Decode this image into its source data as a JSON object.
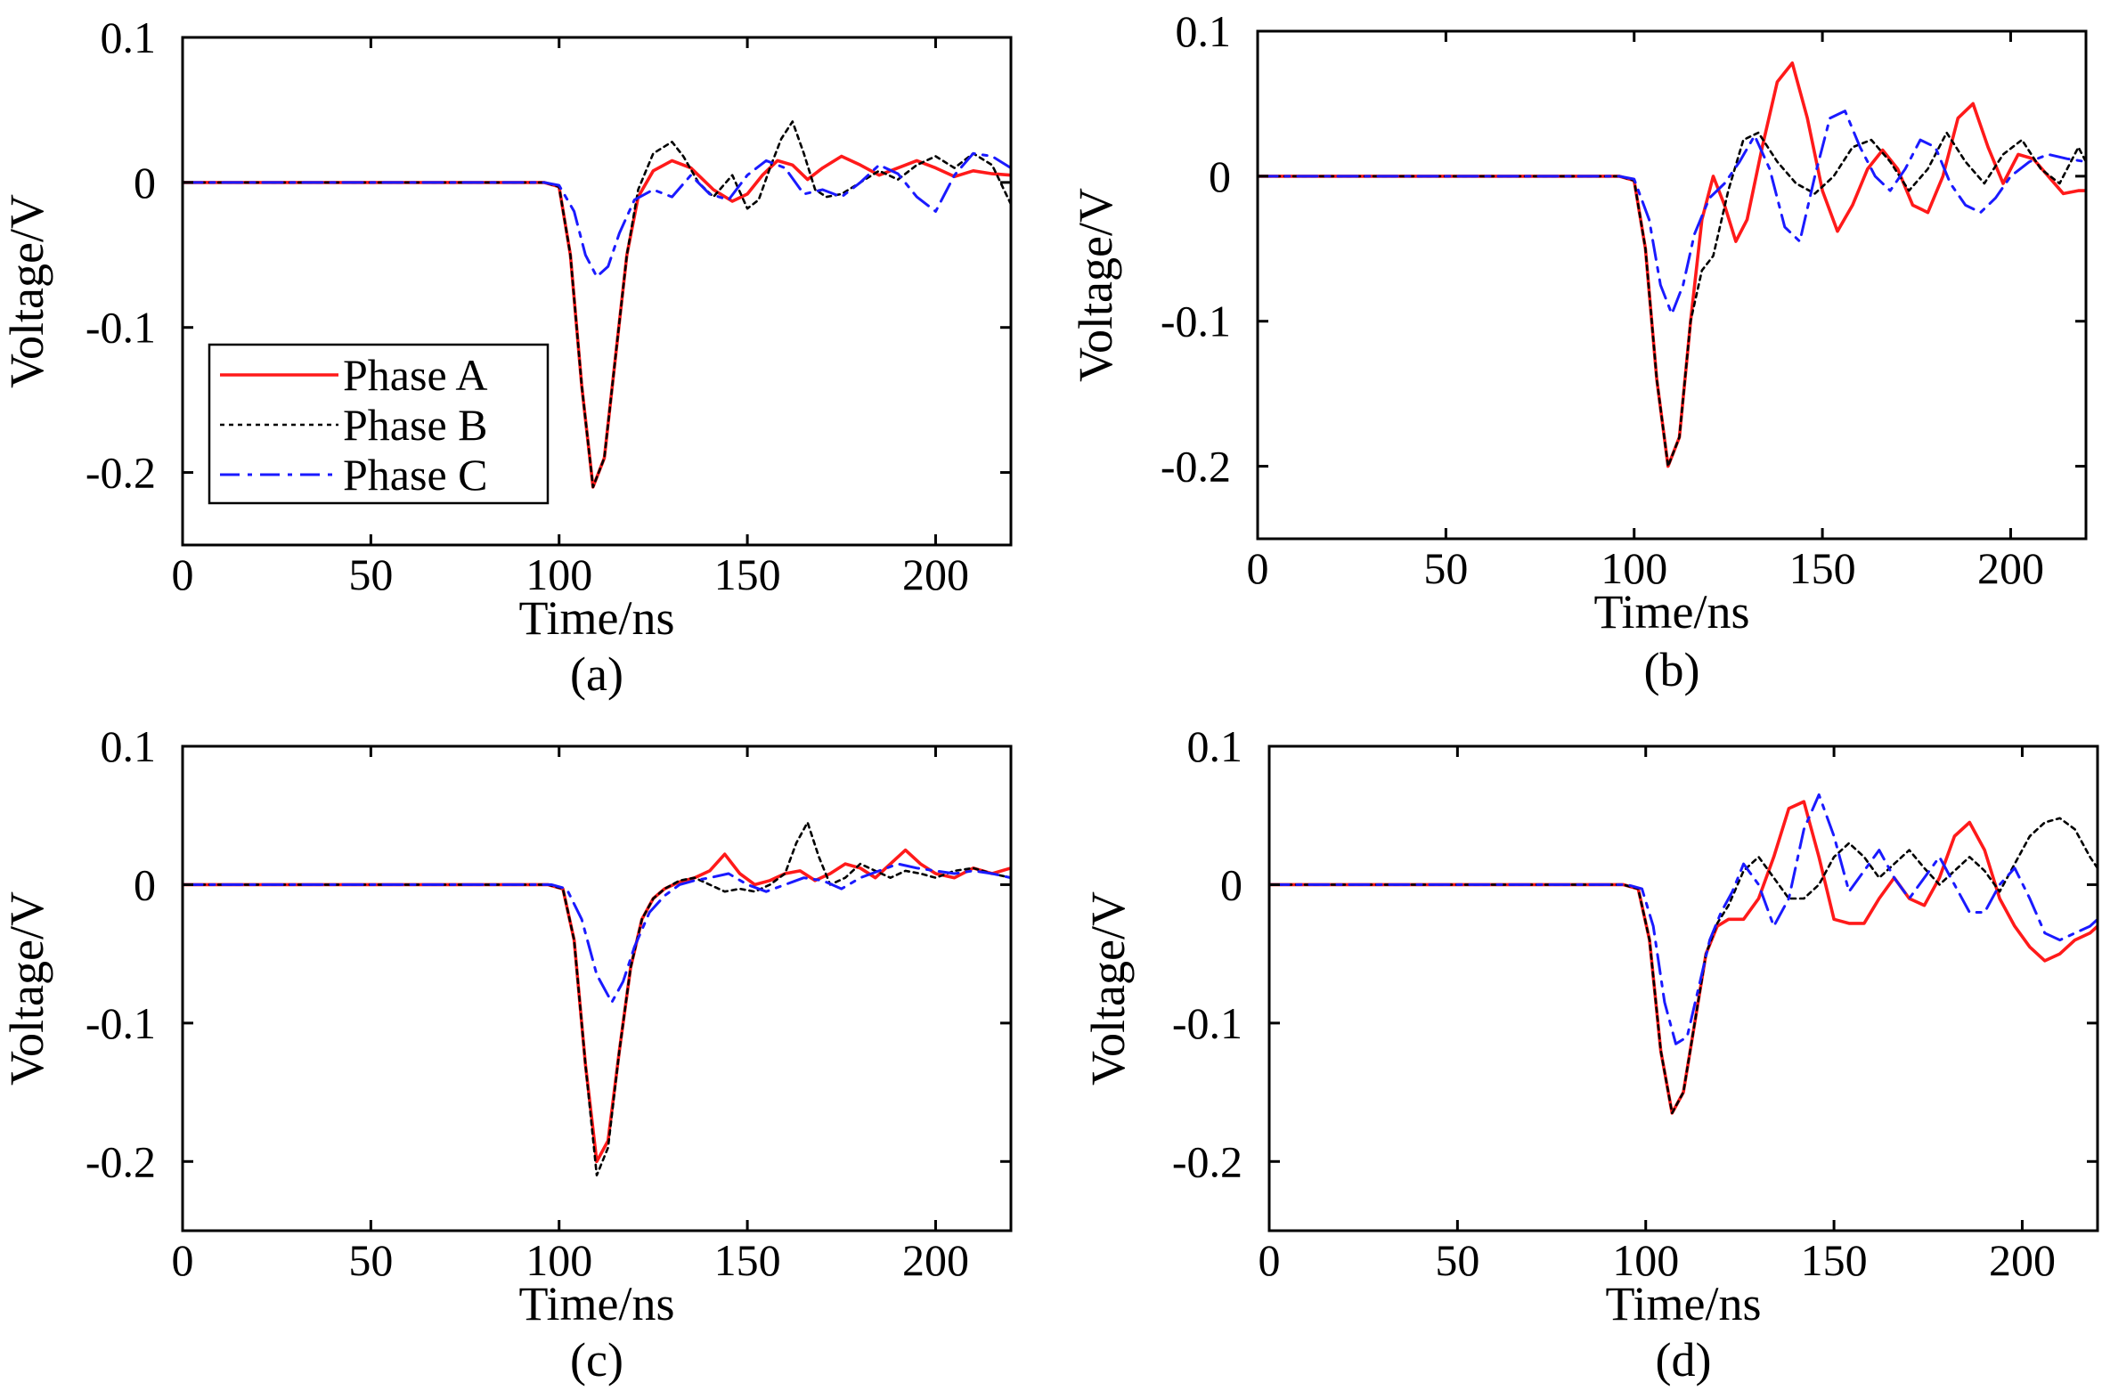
{
  "colors": {
    "phase_a": "#ff1a1a",
    "phase_b": "#000000",
    "phase_c": "#1a1aff"
  },
  "chart_data": [
    {
      "type": "line",
      "panel_label": "(a)",
      "xlabel": "Time/ns",
      "ylabel": "Voltage/V",
      "xlim": [
        0,
        220
      ],
      "ylim": [
        -0.25,
        0.1
      ],
      "xticks": [
        0,
        50,
        100,
        150,
        200
      ],
      "xtick_labels": [
        "0",
        "50",
        "100",
        "150",
        "200"
      ],
      "yticks": [
        0.1,
        0,
        -0.1,
        -0.2
      ],
      "ytick_labels": [
        "0.1",
        "0",
        "-0.1",
        "-0.2"
      ],
      "legend": [
        "Phase A",
        "Phase B",
        "Phase C"
      ],
      "legend_position": "lower-left",
      "series": [
        {
          "name": "Phase A",
          "x": [
            0,
            96,
            100,
            103,
            106,
            109,
            112,
            115,
            118,
            121,
            125,
            130,
            135,
            141,
            146,
            150,
            154,
            158,
            162,
            166,
            170,
            175,
            180,
            185,
            190,
            195,
            200,
            205,
            210,
            215,
            220
          ],
          "y": [
            0,
            0,
            -0.003,
            -0.05,
            -0.14,
            -0.21,
            -0.19,
            -0.12,
            -0.05,
            -0.01,
            0.008,
            0.015,
            0.01,
            -0.005,
            -0.013,
            -0.008,
            0.005,
            0.015,
            0.012,
            0.002,
            0.01,
            0.018,
            0.012,
            0.005,
            0.01,
            0.015,
            0.01,
            0.004,
            0.008,
            0.006,
            0.005
          ]
        },
        {
          "name": "Phase B",
          "x": [
            0,
            96,
            100,
            103,
            106,
            109,
            112,
            115,
            118,
            121,
            125,
            130,
            133,
            137,
            141,
            146,
            150,
            153,
            156,
            159,
            162,
            165,
            168,
            171,
            175,
            180,
            185,
            190,
            195,
            200,
            205,
            210,
            215,
            220
          ],
          "y": [
            0,
            0,
            -0.003,
            -0.05,
            -0.14,
            -0.21,
            -0.19,
            -0.12,
            -0.05,
            -0.005,
            0.02,
            0.028,
            0.018,
            0.0,
            -0.01,
            0.005,
            -0.018,
            -0.012,
            0.01,
            0.03,
            0.042,
            0.02,
            -0.005,
            -0.01,
            -0.008,
            0.0,
            0.008,
            0.002,
            0.012,
            0.018,
            0.01,
            0.02,
            0.012,
            -0.015
          ]
        },
        {
          "name": "Phase C",
          "x": [
            0,
            96,
            100,
            104,
            107,
            110,
            113,
            116,
            120,
            125,
            130,
            135,
            140,
            145,
            150,
            155,
            160,
            165,
            170,
            175,
            180,
            185,
            190,
            195,
            200,
            205,
            210,
            215,
            220
          ],
          "y": [
            0,
            0,
            -0.002,
            -0.02,
            -0.05,
            -0.065,
            -0.058,
            -0.035,
            -0.012,
            -0.005,
            -0.01,
            0.005,
            -0.008,
            -0.012,
            0.005,
            0.015,
            0.01,
            -0.008,
            -0.005,
            -0.01,
            0.0,
            0.012,
            0.006,
            -0.01,
            -0.02,
            0.005,
            0.02,
            0.018,
            0.01
          ]
        }
      ]
    },
    {
      "type": "line",
      "panel_label": "(b)",
      "xlabel": "Time/ns",
      "ylabel": "Voltage/V",
      "xlim": [
        0,
        220
      ],
      "ylim": [
        -0.25,
        0.1
      ],
      "xticks": [
        0,
        50,
        100,
        150,
        200
      ],
      "xtick_labels": [
        "0",
        "50",
        "100",
        "150",
        "200"
      ],
      "yticks": [
        0.1,
        0,
        -0.1,
        -0.2
      ],
      "ytick_labels": [
        "0.1",
        "0",
        "-0.1",
        "-0.2"
      ],
      "series": [
        {
          "name": "Phase A",
          "x": [
            0,
            96,
            100,
            103,
            106,
            109,
            112,
            115,
            118,
            121,
            124,
            127,
            130,
            134,
            138,
            142,
            146,
            150,
            154,
            158,
            162,
            166,
            170,
            174,
            178,
            182,
            186,
            190,
            194,
            198,
            202,
            206,
            210,
            214,
            218,
            220
          ],
          "y": [
            0,
            0,
            -0.003,
            -0.05,
            -0.14,
            -0.2,
            -0.18,
            -0.1,
            -0.03,
            0.0,
            -0.02,
            -0.045,
            -0.03,
            0.02,
            0.065,
            0.078,
            0.04,
            -0.01,
            -0.038,
            -0.02,
            0.005,
            0.018,
            0.005,
            -0.02,
            -0.025,
            0.0,
            0.04,
            0.05,
            0.02,
            -0.005,
            0.015,
            0.012,
            0.0,
            -0.012,
            -0.01,
            -0.01
          ]
        },
        {
          "name": "Phase B",
          "x": [
            0,
            96,
            100,
            103,
            106,
            109,
            112,
            115,
            118,
            121,
            125,
            129,
            133,
            138,
            143,
            148,
            153,
            158,
            163,
            168,
            173,
            178,
            183,
            188,
            193,
            198,
            203,
            208,
            213,
            218,
            220
          ],
          "y": [
            0,
            0,
            -0.003,
            -0.05,
            -0.14,
            -0.2,
            -0.18,
            -0.1,
            -0.065,
            -0.055,
            -0.01,
            0.025,
            0.03,
            0.01,
            -0.005,
            -0.012,
            0.0,
            0.02,
            0.025,
            0.01,
            -0.01,
            0.005,
            0.03,
            0.01,
            -0.005,
            0.015,
            0.025,
            0.005,
            -0.005,
            0.02,
            0.01
          ]
        },
        {
          "name": "Phase C",
          "x": [
            0,
            96,
            100,
            104,
            107,
            110,
            113,
            116,
            120,
            124,
            128,
            132,
            136,
            140,
            144,
            148,
            152,
            156,
            160,
            164,
            168,
            172,
            176,
            180,
            184,
            188,
            192,
            196,
            200,
            205,
            210,
            215,
            220
          ],
          "y": [
            0,
            0,
            -0.002,
            -0.03,
            -0.075,
            -0.095,
            -0.075,
            -0.04,
            -0.015,
            -0.005,
            0.01,
            0.028,
            0.005,
            -0.035,
            -0.045,
            0.0,
            0.04,
            0.045,
            0.02,
            0.0,
            -0.01,
            0.005,
            0.025,
            0.02,
            -0.005,
            -0.02,
            -0.025,
            -0.015,
            0.0,
            0.01,
            0.015,
            0.012,
            0.01
          ]
        }
      ]
    },
    {
      "type": "line",
      "panel_label": "(c)",
      "xlabel": "Time/ns",
      "ylabel": "Voltage/V",
      "xlim": [
        0,
        220
      ],
      "ylim": [
        -0.25,
        0.1
      ],
      "xticks": [
        0,
        50,
        100,
        150,
        200
      ],
      "xtick_labels": [
        "0",
        "50",
        "100",
        "150",
        "200"
      ],
      "yticks": [
        0.1,
        0,
        -0.1,
        -0.2
      ],
      "ytick_labels": [
        "0.1",
        "0",
        "-0.1",
        "-0.2"
      ],
      "series": [
        {
          "name": "Phase A",
          "x": [
            0,
            97,
            101,
            104,
            107,
            110,
            113,
            116,
            119,
            122,
            125,
            128,
            132,
            136,
            140,
            144,
            148,
            152,
            156,
            160,
            164,
            168,
            172,
            176,
            180,
            184,
            188,
            192,
            196,
            200,
            205,
            210,
            215,
            220
          ],
          "y": [
            0,
            0,
            -0.003,
            -0.04,
            -0.13,
            -0.2,
            -0.185,
            -0.12,
            -0.06,
            -0.025,
            -0.01,
            -0.003,
            0.002,
            0.005,
            0.01,
            0.022,
            0.008,
            0.0,
            0.003,
            0.008,
            0.01,
            0.003,
            0.008,
            0.015,
            0.012,
            0.005,
            0.015,
            0.025,
            0.015,
            0.008,
            0.005,
            0.012,
            0.008,
            0.012
          ]
        },
        {
          "name": "Phase B",
          "x": [
            0,
            97,
            101,
            104,
            107,
            110,
            113,
            116,
            119,
            122,
            125,
            128,
            132,
            136,
            140,
            144,
            148,
            152,
            156,
            160,
            163,
            166,
            169,
            172,
            176,
            180,
            184,
            188,
            192,
            196,
            200,
            205,
            210,
            215,
            220
          ],
          "y": [
            0,
            0,
            -0.003,
            -0.04,
            -0.13,
            -0.21,
            -0.19,
            -0.12,
            -0.06,
            -0.025,
            -0.01,
            -0.003,
            0.003,
            0.005,
            0.0,
            -0.005,
            -0.003,
            -0.005,
            0.0,
            0.008,
            0.03,
            0.045,
            0.02,
            0.0,
            0.005,
            0.015,
            0.01,
            0.005,
            0.01,
            0.008,
            0.005,
            0.01,
            0.012,
            0.008,
            0.005
          ]
        },
        {
          "name": "Phase C",
          "x": [
            0,
            98,
            102,
            106,
            110,
            114,
            117,
            120,
            124,
            128,
            132,
            136,
            140,
            145,
            150,
            155,
            160,
            165,
            170,
            175,
            180,
            185,
            190,
            195,
            200,
            205,
            210,
            215,
            220
          ],
          "y": [
            0,
            0,
            -0.003,
            -0.025,
            -0.065,
            -0.085,
            -0.07,
            -0.045,
            -0.02,
            -0.008,
            0.0,
            0.003,
            0.005,
            0.008,
            0.0,
            -0.005,
            0.0,
            0.005,
            0.003,
            -0.003,
            0.005,
            0.01,
            0.015,
            0.012,
            0.01,
            0.008,
            0.01,
            0.008,
            0.005
          ]
        }
      ]
    },
    {
      "type": "line",
      "panel_label": "(d)",
      "xlabel": "Time/ns",
      "ylabel": "Voltage/V",
      "xlim": [
        0,
        220
      ],
      "ylim": [
        -0.25,
        0.1
      ],
      "xticks": [
        0,
        50,
        100,
        150,
        200
      ],
      "xtick_labels": [
        "0",
        "50",
        "100",
        "150",
        "200"
      ],
      "yticks": [
        0.1,
        0,
        -0.1,
        -0.2
      ],
      "ytick_labels": [
        "0.1",
        "0",
        "-0.1",
        "-0.2"
      ],
      "series": [
        {
          "name": "Phase A",
          "x": [
            0,
            94,
            98,
            101,
            104,
            107,
            110,
            113,
            116,
            119,
            122,
            126,
            130,
            134,
            138,
            142,
            146,
            150,
            154,
            158,
            162,
            166,
            170,
            174,
            178,
            182,
            186,
            190,
            194,
            198,
            202,
            206,
            210,
            214,
            218,
            220
          ],
          "y": [
            0,
            0,
            -0.003,
            -0.04,
            -0.12,
            -0.165,
            -0.15,
            -0.1,
            -0.05,
            -0.03,
            -0.025,
            -0.025,
            -0.01,
            0.02,
            0.055,
            0.06,
            0.02,
            -0.025,
            -0.028,
            -0.028,
            -0.01,
            0.005,
            -0.01,
            -0.015,
            0.005,
            0.035,
            0.045,
            0.025,
            -0.01,
            -0.03,
            -0.045,
            -0.055,
            -0.05,
            -0.04,
            -0.035,
            -0.03
          ]
        },
        {
          "name": "Phase B",
          "x": [
            0,
            94,
            98,
            101,
            104,
            107,
            110,
            113,
            116,
            119,
            122,
            126,
            130,
            134,
            138,
            142,
            146,
            150,
            154,
            158,
            162,
            166,
            170,
            174,
            178,
            182,
            186,
            190,
            194,
            198,
            202,
            206,
            210,
            214,
            218,
            220
          ],
          "y": [
            0,
            0,
            -0.003,
            -0.04,
            -0.12,
            -0.165,
            -0.15,
            -0.1,
            -0.05,
            -0.028,
            -0.015,
            0.01,
            0.02,
            0.005,
            -0.01,
            -0.01,
            0.0,
            0.02,
            0.03,
            0.02,
            0.005,
            0.015,
            0.025,
            0.012,
            0.0,
            0.01,
            0.02,
            0.01,
            -0.005,
            0.015,
            0.035,
            0.045,
            0.048,
            0.04,
            0.02,
            0.012
          ]
        },
        {
          "name": "Phase C",
          "x": [
            0,
            95,
            99,
            102,
            105,
            108,
            111,
            114,
            117,
            120,
            123,
            126,
            130,
            134,
            138,
            142,
            146,
            150,
            154,
            158,
            162,
            166,
            170,
            174,
            178,
            182,
            186,
            190,
            194,
            198,
            202,
            206,
            210,
            214,
            218,
            220
          ],
          "y": [
            0,
            0,
            -0.003,
            -0.03,
            -0.085,
            -0.115,
            -0.11,
            -0.075,
            -0.04,
            -0.02,
            -0.005,
            0.015,
            0.0,
            -0.03,
            -0.01,
            0.04,
            0.065,
            0.035,
            -0.005,
            0.01,
            0.025,
            0.005,
            -0.01,
            0.005,
            0.02,
            0.0,
            -0.02,
            -0.02,
            0.0,
            0.012,
            -0.01,
            -0.035,
            -0.04,
            -0.035,
            -0.03,
            -0.025
          ]
        }
      ]
    }
  ]
}
